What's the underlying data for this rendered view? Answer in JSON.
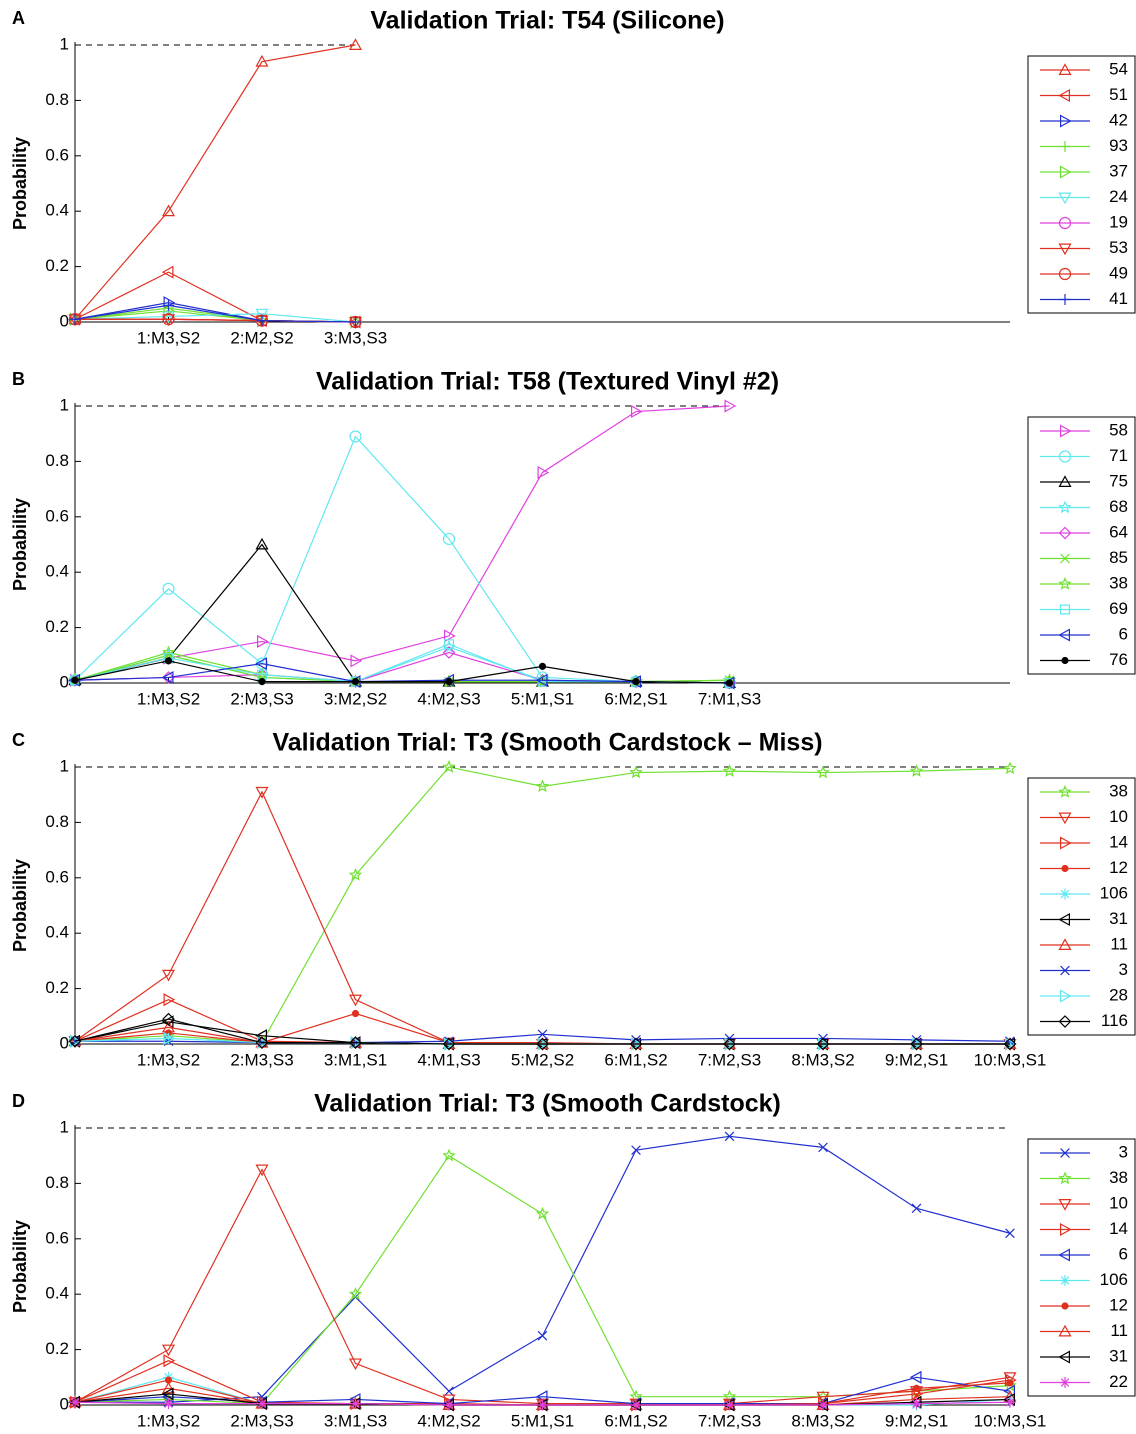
{
  "chart_data": [
    {
      "type": "line",
      "panel": "A",
      "title": "Validation Trial: T54 (Silicone)",
      "y_label": "Probability",
      "categories": [
        null,
        "1:M3,S2",
        "2:M2,S2",
        "3:M3,S3"
      ],
      "xlim": [
        0,
        10
      ],
      "ylim": [
        0,
        1
      ],
      "yticks": [
        0,
        0.2,
        0.4,
        0.6,
        0.8,
        1
      ],
      "series": [
        {
          "name": "54",
          "color": "#e03020",
          "marker": "tri-up",
          "values": [
            0.01,
            0.4,
            0.94,
            1.0
          ]
        },
        {
          "name": "51",
          "color": "#e03020",
          "marker": "tri-left",
          "values": [
            0.01,
            0.18,
            0.005,
            0.0
          ]
        },
        {
          "name": "42",
          "color": "#2030d0",
          "marker": "tri-right",
          "values": [
            0.01,
            0.07,
            0.005,
            0.0
          ]
        },
        {
          "name": "93",
          "color": "#70e030",
          "marker": "plus",
          "values": [
            0.01,
            0.05,
            0.005,
            0.0
          ]
        },
        {
          "name": "37",
          "color": "#70e030",
          "marker": "tri-right",
          "values": [
            0.01,
            0.04,
            0.005,
            0.0
          ]
        },
        {
          "name": "24",
          "color": "#60e8f0",
          "marker": "tri-down",
          "values": [
            0.01,
            0.02,
            0.03,
            0.0
          ]
        },
        {
          "name": "19",
          "color": "#e040e0",
          "marker": "circle",
          "values": [
            0.01,
            0.01,
            0.005,
            0.0
          ]
        },
        {
          "name": "53",
          "color": "#e03020",
          "marker": "tri-down",
          "values": [
            0.01,
            0.01,
            0.005,
            0.0
          ]
        },
        {
          "name": "49",
          "color": "#e03020",
          "marker": "circle",
          "values": [
            0.01,
            0.01,
            0.005,
            0.0
          ]
        },
        {
          "name": "41",
          "color": "#2030d0",
          "marker": "plus",
          "values": [
            0.01,
            0.06,
            0.005,
            0.0
          ]
        }
      ]
    },
    {
      "type": "line",
      "panel": "B",
      "title": "Validation Trial: T58 (Textured Vinyl #2)",
      "y_label": "Probability",
      "categories": [
        null,
        "1:M3,S2",
        "2:M3,S3",
        "3:M2,S2",
        "4:M2,S3",
        "5:M1,S1",
        "6:M2,S1",
        "7:M1,S3"
      ],
      "xlim": [
        0,
        10
      ],
      "ylim": [
        0,
        1
      ],
      "yticks": [
        0,
        0.2,
        0.4,
        0.6,
        0.8,
        1
      ],
      "series": [
        {
          "name": "58",
          "color": "#e040e0",
          "marker": "tri-right",
          "values": [
            0.01,
            0.09,
            0.15,
            0.08,
            0.17,
            0.76,
            0.98,
            1.0
          ]
        },
        {
          "name": "71",
          "color": "#60e8f0",
          "marker": "circle",
          "values": [
            0.01,
            0.34,
            0.07,
            0.89,
            0.52,
            0.02,
            0.005,
            0.0
          ]
        },
        {
          "name": "75",
          "color": "#000000",
          "marker": "tri-up",
          "values": [
            0.01,
            0.09,
            0.5,
            0.005,
            0.005,
            0.005,
            0.005,
            0.0
          ]
        },
        {
          "name": "68",
          "color": "#60e8f0",
          "marker": "star",
          "values": [
            0.01,
            0.1,
            0.02,
            0.005,
            0.13,
            0.01,
            0.005,
            0.0
          ]
        },
        {
          "name": "64",
          "color": "#e040e0",
          "marker": "diamond",
          "values": [
            0.01,
            0.02,
            0.03,
            0.005,
            0.11,
            0.01,
            0.005,
            0.0
          ]
        },
        {
          "name": "85",
          "color": "#70e030",
          "marker": "x",
          "values": [
            0.01,
            0.1,
            0.02,
            0.005,
            0.005,
            0.005,
            0.005,
            0.01
          ]
        },
        {
          "name": "38",
          "color": "#70e030",
          "marker": "star",
          "values": [
            0.01,
            0.11,
            0.03,
            0.005,
            0.005,
            0.005,
            0.005,
            0.01
          ]
        },
        {
          "name": "69",
          "color": "#60e8f0",
          "marker": "square",
          "values": [
            0.01,
            0.09,
            0.03,
            0.005,
            0.14,
            0.005,
            0.005,
            0.0
          ]
        },
        {
          "name": "6",
          "color": "#2030d0",
          "marker": "tri-left",
          "values": [
            0.01,
            0.02,
            0.07,
            0.005,
            0.01,
            0.01,
            0.005,
            0.0
          ]
        },
        {
          "name": "76",
          "color": "#000000",
          "marker": "dot",
          "values": [
            0.01,
            0.08,
            0.005,
            0.005,
            0.005,
            0.06,
            0.005,
            0.0
          ]
        }
      ]
    },
    {
      "type": "line",
      "panel": "C",
      "title": "Validation Trial: T3 (Smooth Cardstock – Miss)",
      "y_label": "Probability",
      "categories": [
        null,
        "1:M3,S2",
        "2:M3,S3",
        "3:M1,S1",
        "4:M1,S3",
        "5:M2,S2",
        "6:M1,S2",
        "7:M2,S3",
        "8:M3,S2",
        "9:M2,S1",
        "10:M3,S1"
      ],
      "xlim": [
        0,
        10
      ],
      "ylim": [
        0,
        1
      ],
      "yticks": [
        0,
        0.2,
        0.4,
        0.6,
        0.8,
        1
      ],
      "series": [
        {
          "name": "38",
          "color": "#70e030",
          "marker": "star",
          "values": [
            0.01,
            0.03,
            0.005,
            0.61,
            1.0,
            0.93,
            0.98,
            0.985,
            0.98,
            0.985,
            0.995
          ]
        },
        {
          "name": "10",
          "color": "#e03020",
          "marker": "tri-down",
          "values": [
            0.01,
            0.25,
            0.91,
            0.16,
            0.005,
            0,
            0,
            0,
            0,
            0,
            0
          ]
        },
        {
          "name": "14",
          "color": "#e03020",
          "marker": "tri-right",
          "values": [
            0.01,
            0.16,
            0.01,
            0.005,
            0,
            0,
            0,
            0,
            0,
            0,
            0
          ]
        },
        {
          "name": "12",
          "color": "#e03020",
          "marker": "dot",
          "values": [
            0.01,
            0.04,
            0.005,
            0.11,
            0.005,
            0.005,
            0,
            0,
            0,
            0,
            0
          ]
        },
        {
          "name": "106",
          "color": "#60e8f0",
          "marker": "asterisk",
          "values": [
            0.01,
            0.02,
            0.005,
            0.005,
            0,
            0,
            0,
            0,
            0,
            0,
            0
          ]
        },
        {
          "name": "31",
          "color": "#000000",
          "marker": "tri-left",
          "values": [
            0.01,
            0.08,
            0.03,
            0.005,
            0,
            0,
            0,
            0,
            0,
            0,
            0
          ]
        },
        {
          "name": "11",
          "color": "#e03020",
          "marker": "tri-up",
          "values": [
            0.01,
            0.06,
            0.005,
            0.005,
            0,
            0,
            0,
            0,
            0,
            0,
            0
          ]
        },
        {
          "name": "3",
          "color": "#2030d0",
          "marker": "x",
          "values": [
            0.01,
            0.01,
            0.005,
            0.005,
            0.01,
            0.035,
            0.015,
            0.02,
            0.02,
            0.015,
            0.01
          ]
        },
        {
          "name": "28",
          "color": "#60e8f0",
          "marker": "tri-right",
          "values": [
            0.01,
            0.02,
            0.005,
            0.005,
            0,
            0,
            0,
            0,
            0,
            0,
            0
          ]
        },
        {
          "name": "116",
          "color": "#000000",
          "marker": "diamond",
          "values": [
            0.01,
            0.09,
            0.005,
            0.005,
            0,
            0,
            0,
            0,
            0,
            0,
            0
          ]
        }
      ]
    },
    {
      "type": "line",
      "panel": "D",
      "title": "Validation Trial: T3 (Smooth Cardstock)",
      "y_label": "Probability",
      "categories": [
        null,
        "1:M3,S2",
        "2:M3,S3",
        "3:M1,S3",
        "4:M2,S2",
        "5:M1,S1",
        "6:M1,S2",
        "7:M2,S3",
        "8:M3,S2",
        "9:M2,S1",
        "10:M3,S1"
      ],
      "xlim": [
        0,
        10
      ],
      "ylim": [
        0,
        1
      ],
      "yticks": [
        0,
        0.2,
        0.4,
        0.6,
        0.8,
        1
      ],
      "series": [
        {
          "name": "3",
          "color": "#2030d0",
          "marker": "x",
          "values": [
            0.01,
            0.01,
            0.03,
            0.39,
            0.05,
            0.25,
            0.92,
            0.97,
            0.93,
            0.71,
            0.62
          ]
        },
        {
          "name": "38",
          "color": "#70e030",
          "marker": "star",
          "values": [
            0.01,
            0.02,
            0.005,
            0.4,
            0.9,
            0.69,
            0.03,
            0.03,
            0.03,
            0.05,
            0.07
          ]
        },
        {
          "name": "10",
          "color": "#e03020",
          "marker": "tri-down",
          "values": [
            0.01,
            0.2,
            0.85,
            0.15,
            0.02,
            0.005,
            0.005,
            0.005,
            0.03,
            0.05,
            0.1
          ]
        },
        {
          "name": "14",
          "color": "#e03020",
          "marker": "tri-right",
          "values": [
            0.01,
            0.16,
            0.01,
            0.005,
            0.005,
            0,
            0,
            0,
            0.005,
            0.04,
            0.09
          ]
        },
        {
          "name": "6",
          "color": "#2030d0",
          "marker": "tri-left",
          "values": [
            0.01,
            0.03,
            0.01,
            0.02,
            0.005,
            0.03,
            0.005,
            0.005,
            0.005,
            0.1,
            0.05
          ]
        },
        {
          "name": "106",
          "color": "#60e8f0",
          "marker": "asterisk",
          "values": [
            0.01,
            0.1,
            0.005,
            0.005,
            0,
            0,
            0,
            0,
            0,
            0,
            0.02
          ]
        },
        {
          "name": "12",
          "color": "#e03020",
          "marker": "dot",
          "values": [
            0.01,
            0.09,
            0.005,
            0.005,
            0,
            0,
            0,
            0,
            0.005,
            0.06,
            0.08
          ]
        },
        {
          "name": "11",
          "color": "#e03020",
          "marker": "tri-up",
          "values": [
            0.01,
            0.06,
            0.005,
            0.005,
            0,
            0,
            0,
            0,
            0,
            0.02,
            0.03
          ]
        },
        {
          "name": "31",
          "color": "#000000",
          "marker": "tri-left",
          "values": [
            0.01,
            0.04,
            0.005,
            0.005,
            0,
            0,
            0,
            0,
            0,
            0.01,
            0.02
          ]
        },
        {
          "name": "22",
          "color": "#e040e0",
          "marker": "asterisk",
          "values": [
            0.01,
            0.005,
            0.005,
            0.005,
            0,
            0,
            0,
            0,
            0,
            0.005,
            0.01
          ]
        }
      ]
    }
  ]
}
